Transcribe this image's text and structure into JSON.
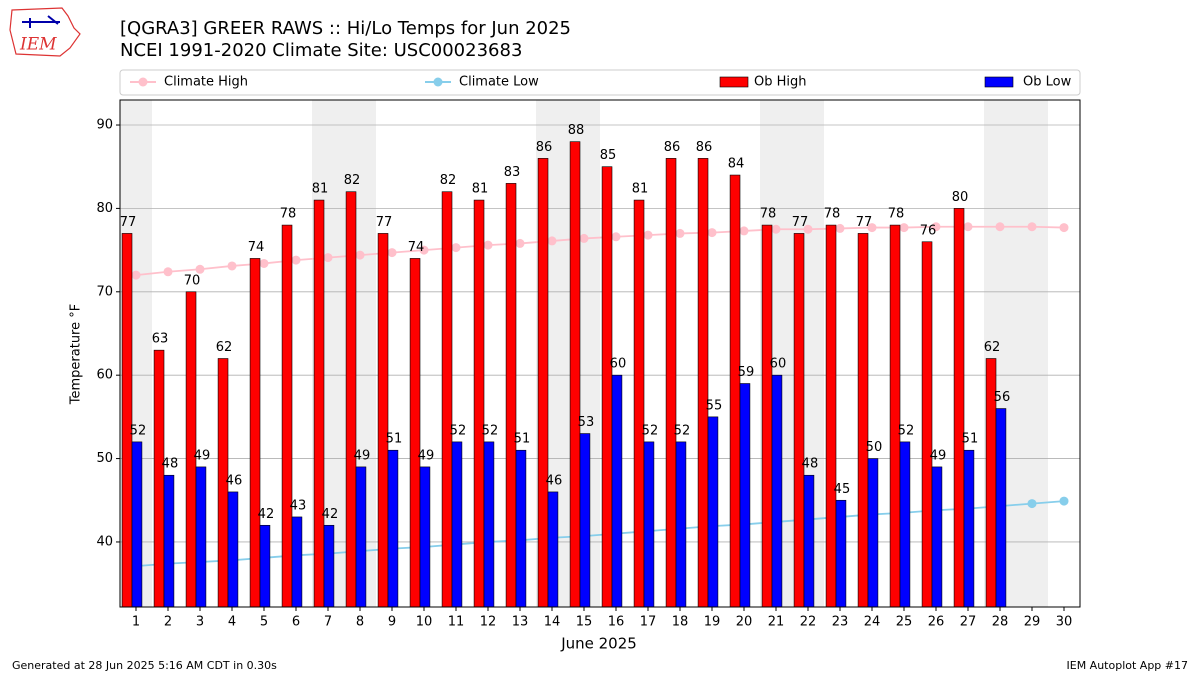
{
  "logo_text": "IEM",
  "footer_left": "Generated at 28 Jun 2025 5:16 AM CDT in 0.30s",
  "footer_right": "IEM Autoplot App #17",
  "chart_data": {
    "type": "bar",
    "title": "[QGRA3] GREER RAWS :: Hi/Lo Temps for Jun 2025",
    "subtitle": "NCEI 1991-2020 Climate Site: USC00023683",
    "xlabel": "June 2025",
    "ylabel": "Temperature °F",
    "x": [
      1,
      2,
      3,
      4,
      5,
      6,
      7,
      8,
      9,
      10,
      11,
      12,
      13,
      14,
      15,
      16,
      17,
      18,
      19,
      20,
      21,
      22,
      23,
      24,
      25,
      26,
      27,
      28,
      29,
      30
    ],
    "xlim": [
      0.5,
      30.5
    ],
    "xticks": [
      1,
      2,
      3,
      4,
      5,
      6,
      7,
      8,
      9,
      10,
      11,
      12,
      13,
      14,
      15,
      16,
      17,
      18,
      19,
      20,
      21,
      22,
      23,
      24,
      25,
      26,
      27,
      28,
      29,
      30
    ],
    "ylim": [
      32.2,
      93
    ],
    "yticks": [
      40,
      50,
      60,
      70,
      80,
      90
    ],
    "grid": true,
    "shaded_days": [
      1,
      7,
      8,
      14,
      15,
      21,
      22,
      28,
      29
    ],
    "shade_color": "#efefef",
    "series": [
      {
        "name": "Climate High",
        "kind": "line",
        "color": "#ffc0cb",
        "values": [
          72.0,
          72.4,
          72.7,
          73.1,
          73.4,
          73.8,
          74.1,
          74.4,
          74.7,
          75.0,
          75.3,
          75.6,
          75.8,
          76.1,
          76.4,
          76.6,
          76.8,
          77.0,
          77.1,
          77.3,
          77.5,
          77.5,
          77.6,
          77.7,
          77.7,
          77.8,
          77.8,
          77.8,
          77.8,
          77.7
        ]
      },
      {
        "name": "Climate Low",
        "kind": "line",
        "color": "#87ceeb",
        "values": [
          37.1,
          37.4,
          37.6,
          37.8,
          38.1,
          38.4,
          38.6,
          38.9,
          39.2,
          39.4,
          39.7,
          40.0,
          40.2,
          40.5,
          40.7,
          41.0,
          41.3,
          41.6,
          41.9,
          42.1,
          42.4,
          42.7,
          43.0,
          43.3,
          43.5,
          43.8,
          44.0,
          44.3,
          44.6,
          44.9
        ]
      },
      {
        "name": "Ob High",
        "kind": "bar",
        "color": "#ff0000",
        "values": [
          77,
          63,
          70,
          62,
          74,
          78,
          81,
          82,
          77,
          74,
          82,
          81,
          83,
          86,
          88,
          85,
          81,
          86,
          86,
          84,
          78,
          77,
          78,
          77,
          78,
          76,
          80,
          62,
          null,
          null
        ]
      },
      {
        "name": "Ob Low",
        "kind": "bar",
        "color": "#0000ff",
        "values": [
          52,
          48,
          49,
          46,
          42,
          43,
          42,
          49,
          51,
          49,
          52,
          52,
          51,
          46,
          53,
          60,
          52,
          52,
          55,
          59,
          60,
          48,
          45,
          50,
          52,
          49,
          51,
          56,
          null,
          null
        ]
      }
    ]
  }
}
